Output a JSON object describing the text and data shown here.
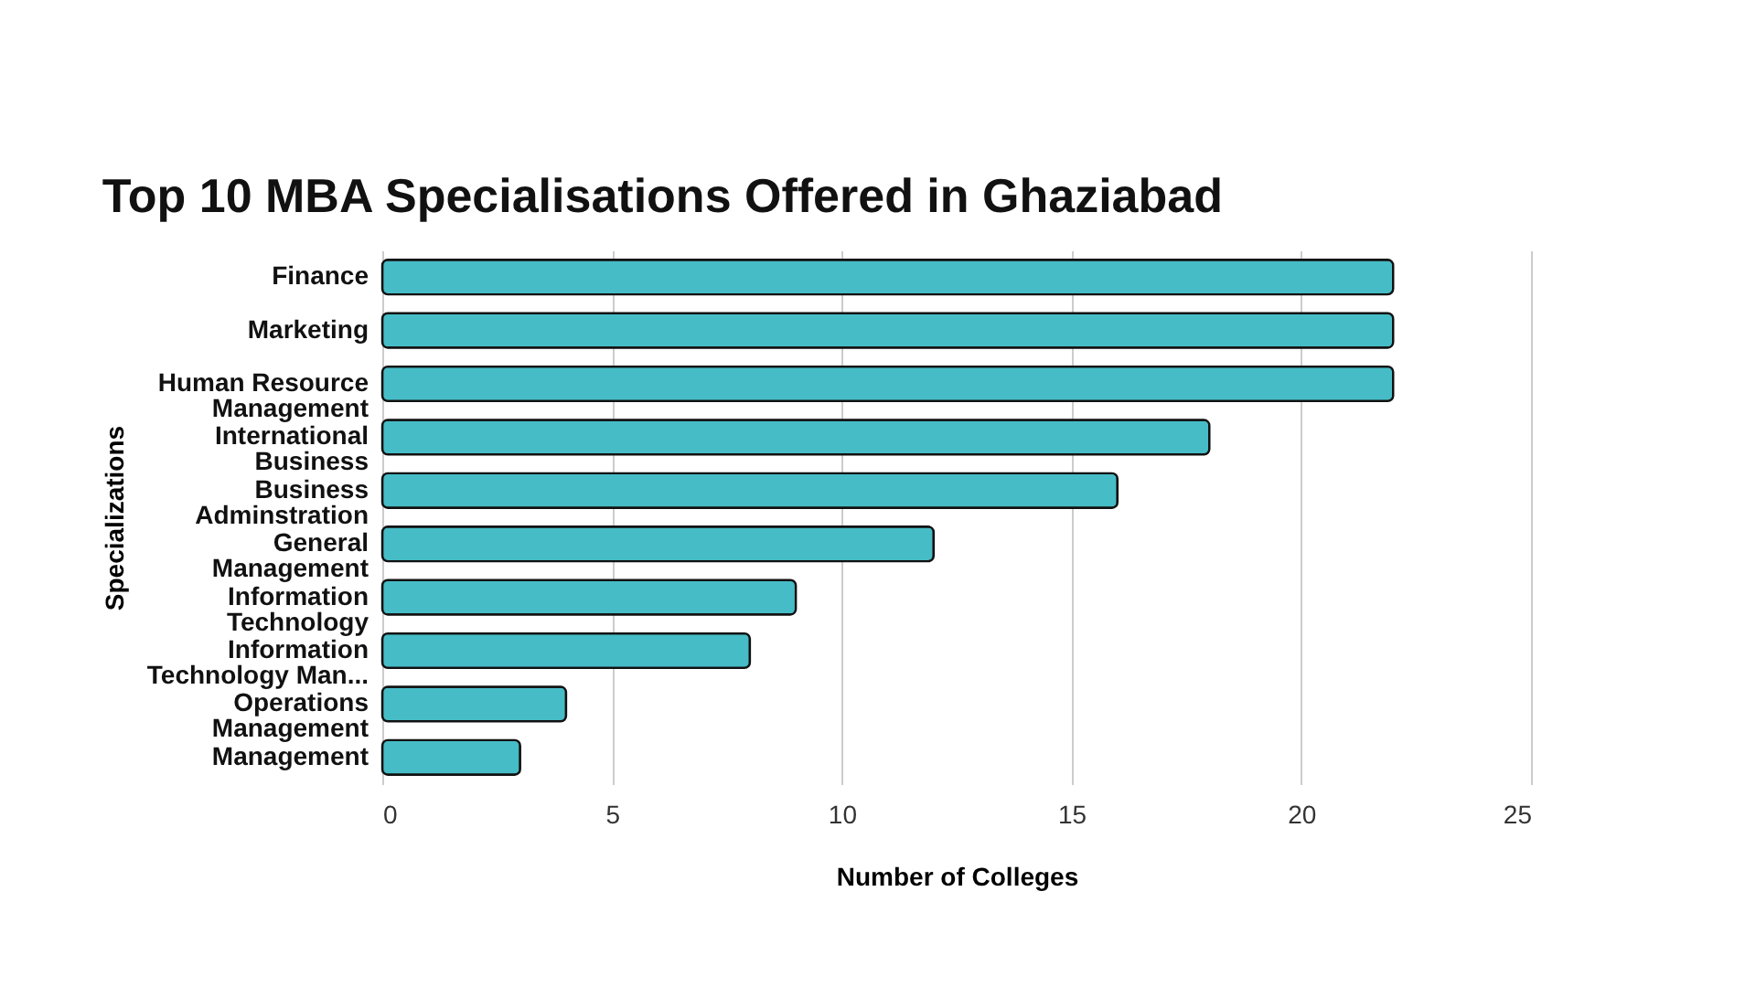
{
  "chart_data": {
    "type": "bar",
    "orientation": "horizontal",
    "title": "Top 10 MBA Specialisations Offered in Ghaziabad",
    "xlabel": "Number of Colleges",
    "ylabel": "Specializations",
    "categories": [
      "Finance",
      "Marketing",
      "Human Resource Management",
      "International Business",
      "Business Adminstration",
      "General Management",
      "Information Technology",
      "Information Technology Man...",
      "Operations Management",
      "Management"
    ],
    "values": [
      22,
      22,
      22,
      18,
      16,
      12,
      9,
      8,
      4,
      3
    ],
    "color": "#46bcc6",
    "xlim": [
      0,
      25
    ],
    "xticks": [
      0,
      5,
      10,
      15,
      20,
      25
    ],
    "grid": "x"
  }
}
